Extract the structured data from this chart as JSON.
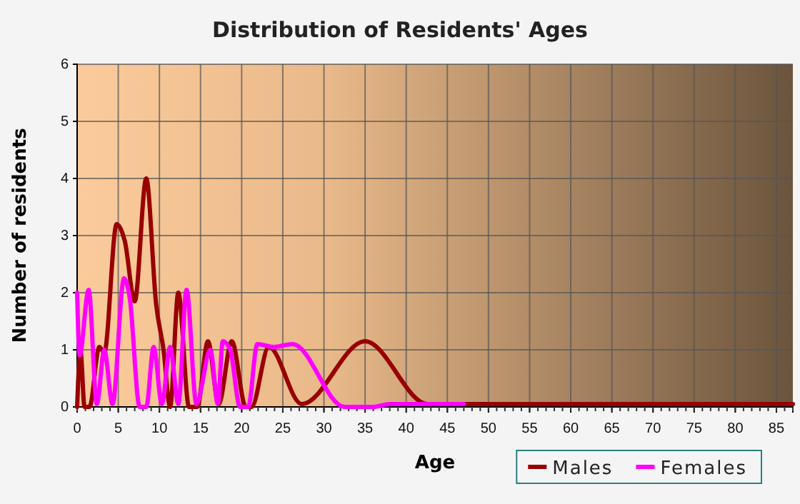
{
  "chart_data": {
    "type": "line",
    "title": "Distribution of Residents' Ages",
    "xlabel": "Age",
    "ylabel": "Number of residents",
    "xlim": [
      0,
      87
    ],
    "xticks": [
      0,
      5,
      10,
      15,
      20,
      25,
      30,
      35,
      40,
      45,
      50,
      55,
      60,
      65,
      70,
      75,
      80,
      85
    ],
    "ylim": [
      0,
      6
    ],
    "yticks": [
      0,
      1,
      2,
      3,
      4,
      5,
      6
    ],
    "grid": true,
    "legend": "bottom right",
    "marker": "none",
    "line_style": "solid",
    "series": [
      {
        "name": "Males",
        "color": "#990000",
        "x": [
          0,
          0.4,
          0.9,
          1.5,
          2.7,
          3.3,
          4.8,
          5.8,
          7,
          8.4,
          9.6,
          10.5,
          11.3,
          12.3,
          13.6,
          14.6,
          15.9,
          17.2,
          18.8,
          20.5,
          21.2,
          23.3,
          27.3,
          35,
          42.6,
          50,
          60,
          70,
          80,
          87
        ],
        "values": [
          0,
          1,
          0,
          0,
          1.05,
          0.95,
          3.2,
          2.9,
          1.85,
          4,
          1.8,
          1,
          0,
          2,
          0,
          0,
          1.15,
          0.05,
          1.15,
          0,
          0,
          1.05,
          0.05,
          1.15,
          0.05,
          0.05,
          0.05,
          0.05,
          0.05,
          0.05
        ]
      },
      {
        "name": "Females",
        "color": "#ff00ff",
        "x": [
          0,
          0.3,
          1.4,
          2.4,
          3.3,
          4.3,
          5.7,
          6.4,
          7.6,
          8.4,
          9.3,
          10.3,
          11.3,
          12.3,
          13.3,
          14.5,
          16.2,
          17.1,
          17.7,
          18.6,
          19.8,
          20.8,
          21.9,
          23.9,
          26.2,
          32.5,
          36,
          38,
          47
        ],
        "values": [
          2,
          0.9,
          2.05,
          0.05,
          1,
          0.05,
          2.25,
          1.9,
          0,
          0,
          1.05,
          0.05,
          1.05,
          0.05,
          2.05,
          0.05,
          1,
          0.05,
          1.15,
          1,
          0,
          0,
          1.1,
          1.05,
          1.1,
          0,
          0,
          0.05,
          0.05
        ]
      }
    ]
  }
}
